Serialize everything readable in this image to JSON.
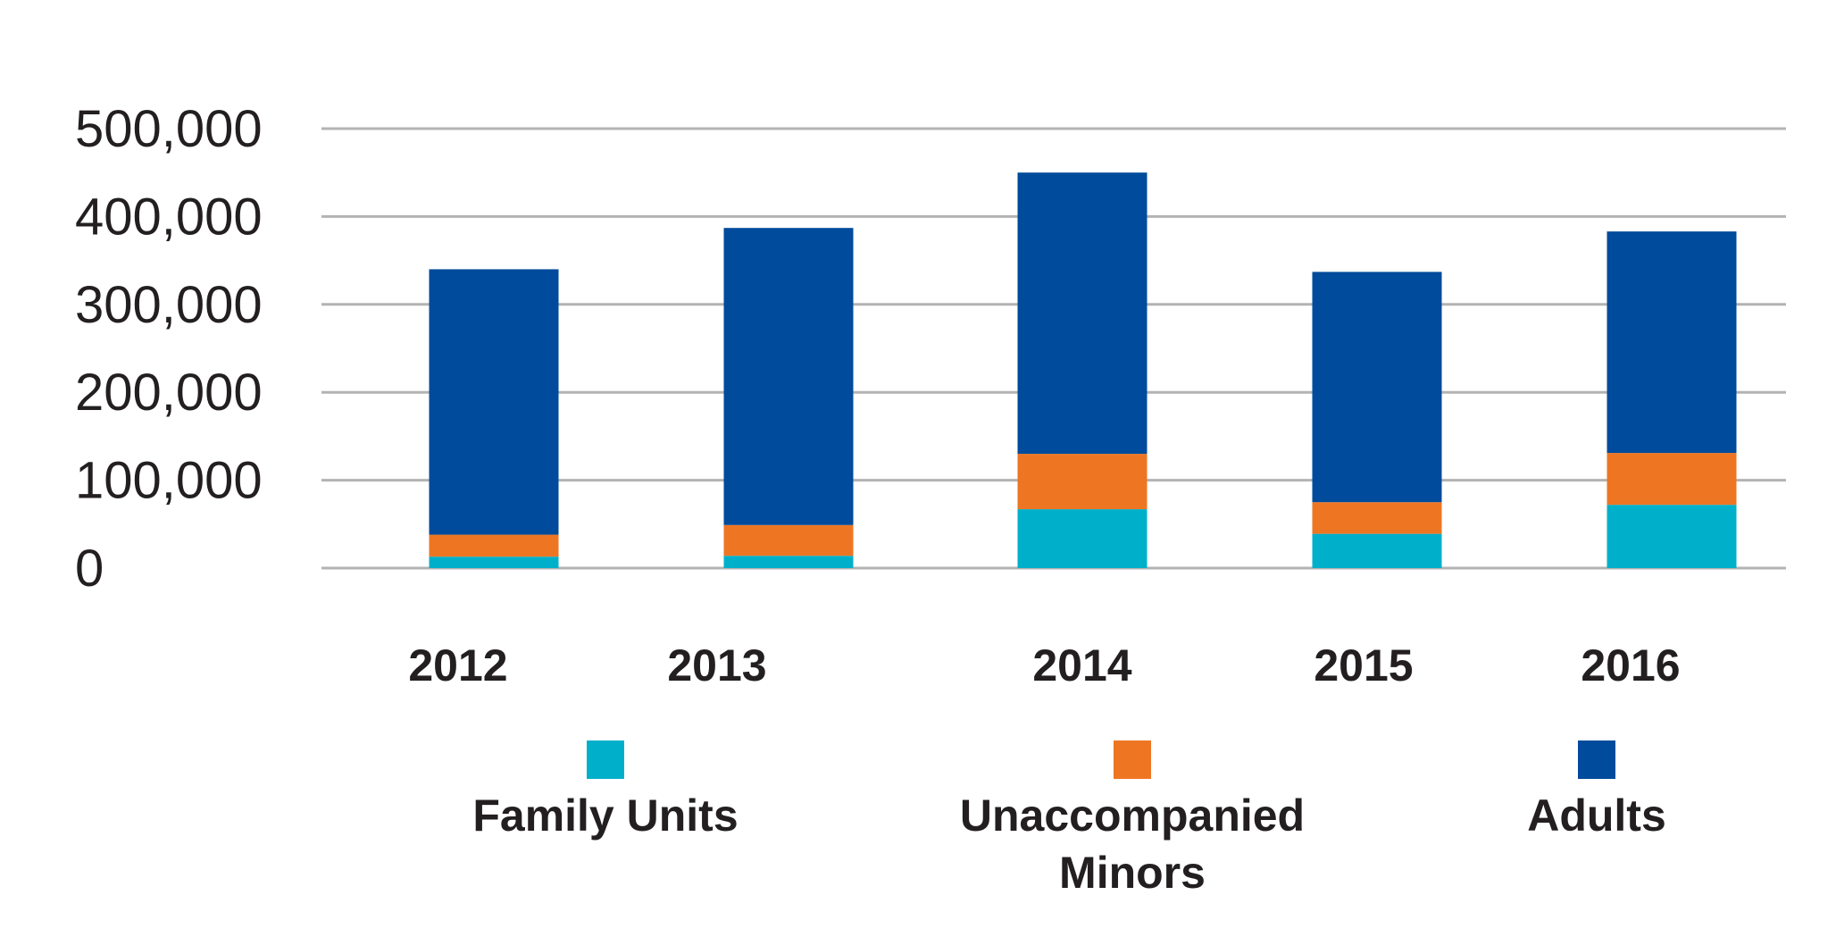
{
  "chart_data": {
    "type": "bar",
    "stacked": true,
    "title": "",
    "xlabel": "",
    "ylabel": "",
    "categories": [
      "2012",
      "2013",
      "2014",
      "2015",
      "2016"
    ],
    "series": [
      {
        "name": "Family Units",
        "color": "#00b0ca",
        "values": [
          13000,
          14000,
          67000,
          39000,
          72000
        ]
      },
      {
        "name": "Unaccompanied Minors",
        "color": "#ee7623",
        "values": [
          25000,
          35000,
          63000,
          36000,
          59000
        ]
      },
      {
        "name": "Adults",
        "color": "#004b9b",
        "values": [
          302000,
          338000,
          320000,
          262000,
          252000
        ]
      }
    ],
    "ylim": [
      0,
      500000
    ],
    "yticks": [
      0,
      100000,
      200000,
      300000,
      400000,
      500000
    ],
    "ytick_labels": [
      "0",
      "100,000",
      "200,000",
      "300,000",
      "400,000",
      "500,000"
    ],
    "grid": true,
    "legend": {
      "placement": "bottom",
      "items": [
        {
          "lines": [
            "Family Units"
          ]
        },
        {
          "lines": [
            "Unaccompanied",
            "Minors"
          ]
        },
        {
          "lines": [
            "Adults"
          ]
        }
      ]
    },
    "gridline_color": "#b3b3b3"
  }
}
